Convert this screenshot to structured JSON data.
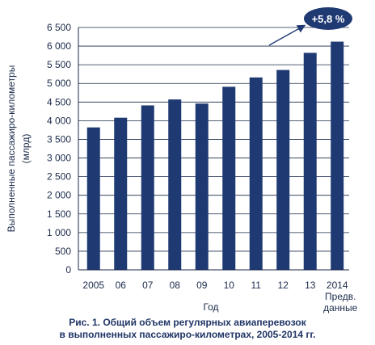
{
  "chart_data": {
    "type": "bar",
    "categories": [
      "2005",
      "06",
      "07",
      "08",
      "09",
      "10",
      "11",
      "12",
      "13",
      "2014"
    ],
    "category_sublabel_last": [
      "Предв.",
      "данные"
    ],
    "values": [
      3820,
      4080,
      4410,
      4570,
      4460,
      4910,
      5160,
      5360,
      5820,
      6120
    ],
    "ylabel_line1": "Выполненные пассажиро-километры",
    "ylabel_line2": "(млрд)",
    "xlabel": "Год",
    "ylim": [
      0,
      6500
    ],
    "yticks": [
      "0",
      "500",
      "1 000",
      "1 500",
      "2 000",
      "2 500",
      "3 000",
      "3 500",
      "4 000",
      "4 500",
      "5 000",
      "5 500",
      "6 000",
      "6 500"
    ],
    "ytick_values": [
      0,
      500,
      1000,
      1500,
      2000,
      2500,
      3000,
      3500,
      4000,
      4500,
      5000,
      5500,
      6000,
      6500
    ],
    "grid": true,
    "annotation": "+5,8 %",
    "bar_color": "#1f3a73",
    "annotation_color": "#1f3a73"
  },
  "caption": {
    "line1": "Рис. 1. Общий объем регулярных авиаперевозок",
    "line2": "в выполненных пассажиро-километрах, 2005-2014 гг."
  }
}
